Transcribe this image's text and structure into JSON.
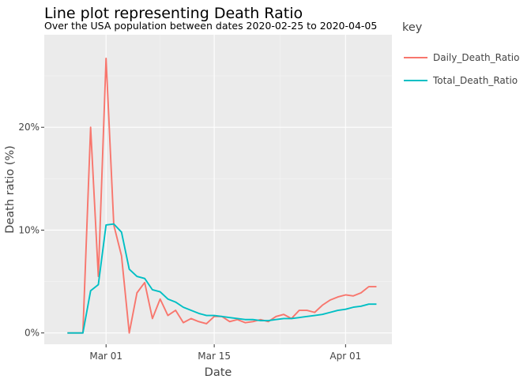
{
  "chart_data": {
    "type": "line",
    "title": "Line plot representing Death Ratio",
    "subtitle": "Over the USA population between dates 2020-02-25 to 2020-04-05",
    "xlabel": "Date",
    "ylabel": "Death ratio (%)",
    "x_ticks": [
      {
        "date": "2020-03-01",
        "label": "Mar 01"
      },
      {
        "date": "2020-03-15",
        "label": "Mar 15"
      },
      {
        "date": "2020-04-01",
        "label": "Apr 01"
      }
    ],
    "y_ticks": [
      {
        "value": 0,
        "label": "0%"
      },
      {
        "value": 10,
        "label": "10%"
      },
      {
        "value": 20,
        "label": "20%"
      }
    ],
    "xlim": [
      "2020-02-22",
      "2020-04-07"
    ],
    "ylim": [
      -1.1,
      29.0
    ],
    "grid": true,
    "legend_title": "key",
    "legend_position": "right",
    "x": [
      "2020-02-25",
      "2020-02-26",
      "2020-02-27",
      "2020-02-28",
      "2020-02-29",
      "2020-03-01",
      "2020-03-02",
      "2020-03-03",
      "2020-03-04",
      "2020-03-05",
      "2020-03-06",
      "2020-03-07",
      "2020-03-08",
      "2020-03-09",
      "2020-03-10",
      "2020-03-11",
      "2020-03-12",
      "2020-03-13",
      "2020-03-14",
      "2020-03-15",
      "2020-03-16",
      "2020-03-17",
      "2020-03-18",
      "2020-03-19",
      "2020-03-20",
      "2020-03-21",
      "2020-03-22",
      "2020-03-23",
      "2020-03-24",
      "2020-03-25",
      "2020-03-26",
      "2020-03-27",
      "2020-03-28",
      "2020-03-29",
      "2020-03-30",
      "2020-03-31",
      "2020-04-01",
      "2020-04-02",
      "2020-04-03",
      "2020-04-04",
      "2020-04-05"
    ],
    "series": [
      {
        "name": "Daily_Death_Ratio",
        "color": "#F8766D",
        "values": [
          0.0,
          0.0,
          0.0,
          20.0,
          5.5,
          26.7,
          10.5,
          7.5,
          0.0,
          3.9,
          4.9,
          1.4,
          3.3,
          1.7,
          2.2,
          1.0,
          1.4,
          1.1,
          0.9,
          1.6,
          1.6,
          1.1,
          1.3,
          1.0,
          1.1,
          1.3,
          1.1,
          1.6,
          1.8,
          1.4,
          2.2,
          2.2,
          2.0,
          2.7,
          3.2,
          3.5,
          3.7,
          3.6,
          3.9,
          4.5,
          4.5
        ]
      },
      {
        "name": "Total_Death_Ratio",
        "color": "#00BFC4",
        "values": [
          0.0,
          0.0,
          0.0,
          4.1,
          4.7,
          10.5,
          10.6,
          9.8,
          6.2,
          5.5,
          5.3,
          4.2,
          4.0,
          3.3,
          3.0,
          2.5,
          2.2,
          1.9,
          1.7,
          1.7,
          1.6,
          1.5,
          1.4,
          1.3,
          1.3,
          1.2,
          1.2,
          1.3,
          1.4,
          1.4,
          1.5,
          1.6,
          1.7,
          1.8,
          2.0,
          2.2,
          2.3,
          2.5,
          2.6,
          2.8,
          2.8
        ]
      }
    ]
  }
}
